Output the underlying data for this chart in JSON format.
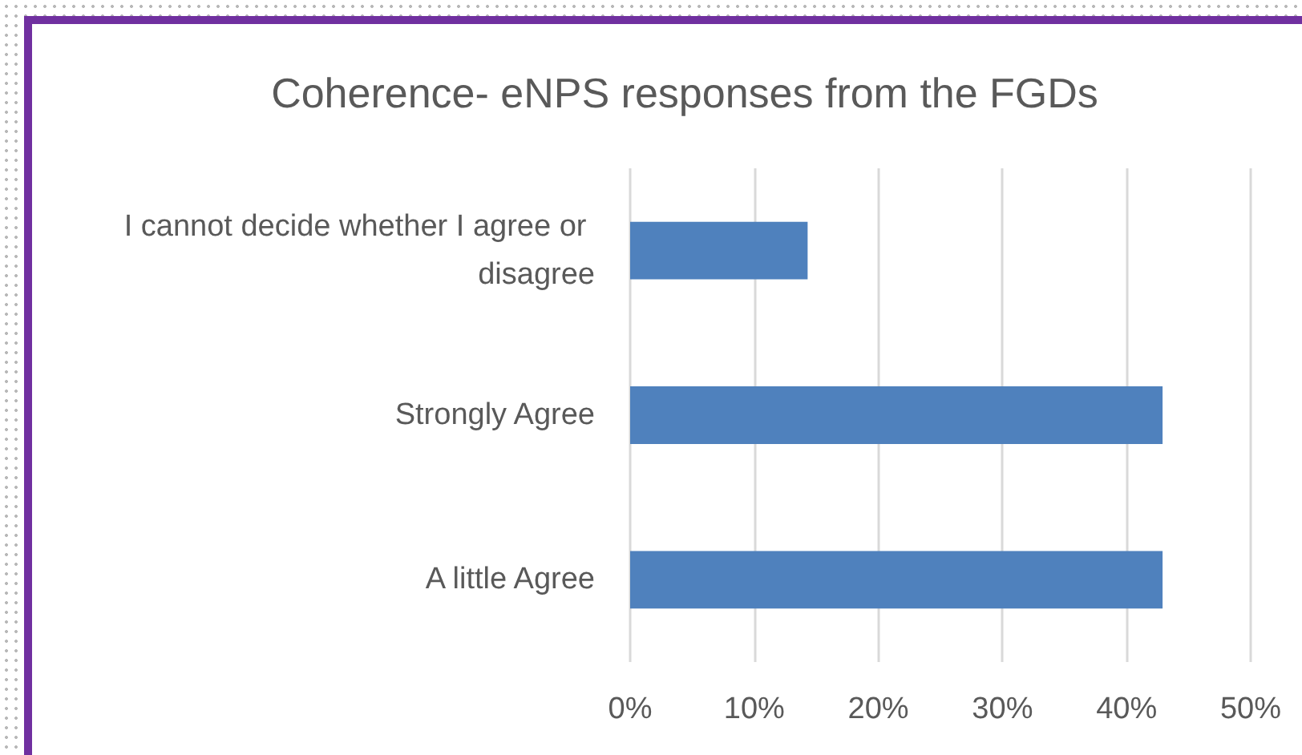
{
  "chart_data": {
    "type": "bar",
    "orientation": "horizontal",
    "title": "Coherence- eNPS responses from the FGDs",
    "categories": [
      "I cannot decide whether I agree or disagree",
      "Strongly Agree",
      "A little Agree"
    ],
    "values": [
      14.3,
      42.9,
      42.9
    ],
    "color": "#4f81bd",
    "xlim": [
      0,
      50
    ],
    "xticks": [
      {
        "value": 0,
        "label": "0%"
      },
      {
        "value": 10,
        "label": "10%"
      },
      {
        "value": 20,
        "label": "20%"
      },
      {
        "value": 30,
        "label": "30%"
      },
      {
        "value": 40,
        "label": "40%"
      },
      {
        "value": 50,
        "label": "50%"
      }
    ],
    "grid": "x"
  }
}
